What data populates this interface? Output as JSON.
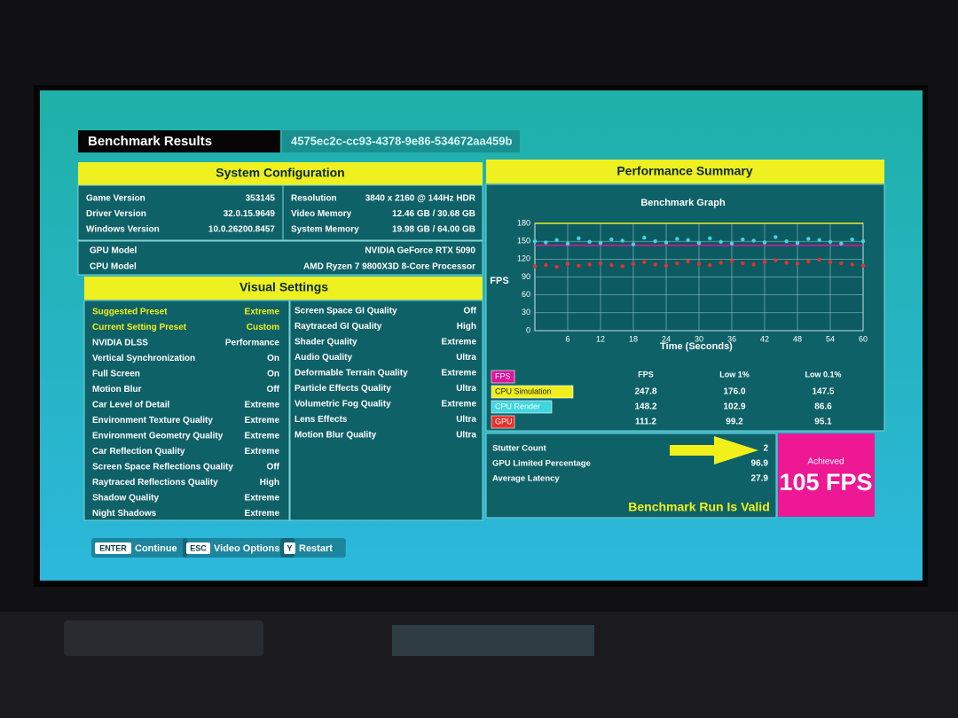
{
  "header": {
    "title": "Benchmark Results",
    "run_id": "4575ec2c-cc93-4378-9e86-534672aa459b"
  },
  "system_configuration": {
    "title": "System Configuration",
    "left": [
      [
        "Game Version",
        "353145"
      ],
      [
        "Driver Version",
        "32.0.15.9649"
      ],
      [
        "Windows Version",
        "10.0.26200.8457"
      ]
    ],
    "right": [
      [
        "Resolution",
        "3840 x 2160 @ 144Hz HDR"
      ],
      [
        "Video Memory",
        "12.46 GB / 30.68 GB"
      ],
      [
        "System Memory",
        "19.98 GB / 64.00 GB"
      ]
    ],
    "hardware": [
      [
        "GPU Model",
        "NVIDIA GeForce RTX 5090"
      ],
      [
        "CPU Model",
        "AMD Ryzen 7 9800X3D 8-Core Processor"
      ]
    ]
  },
  "visual_settings": {
    "title": "Visual Settings",
    "left": [
      [
        "Suggested Preset",
        "Extreme"
      ],
      [
        "Current Setting Preset",
        "Custom"
      ],
      [
        "NVIDIA DLSS",
        "Performance"
      ],
      [
        "Vertical Synchronization",
        "On"
      ],
      [
        "Full Screen",
        "On"
      ],
      [
        "Motion Blur",
        "Off"
      ],
      [
        "Car Level of Detail",
        "Extreme"
      ],
      [
        "Environment Texture Quality",
        "Extreme"
      ],
      [
        "Environment Geometry Quality",
        "Extreme"
      ],
      [
        "Car Reflection Quality",
        "Extreme"
      ],
      [
        "Screen Space Reflections Quality",
        "Off"
      ],
      [
        "Raytraced Reflections Quality",
        "High"
      ],
      [
        "Shadow Quality",
        "Extreme"
      ],
      [
        "Night Shadows",
        "Extreme"
      ]
    ],
    "right": [
      [
        "Screen Space GI Quality",
        "Off"
      ],
      [
        "Raytraced GI Quality",
        "High"
      ],
      [
        "Shader Quality",
        "Extreme"
      ],
      [
        "Audio Quality",
        "Ultra"
      ],
      [
        "Deformable Terrain Quality",
        "Extreme"
      ],
      [
        "Particle Effects Quality",
        "Ultra"
      ],
      [
        "Volumetric Fog Quality",
        "Extreme"
      ],
      [
        "Lens Effects",
        "Ultra"
      ],
      [
        "Motion Blur Quality",
        "Ultra"
      ]
    ]
  },
  "performance_summary": {
    "title": "Performance Summary",
    "columns": [
      "FPS",
      "Low 1%",
      "Low 0.1%"
    ],
    "rows": [
      [
        "247.8",
        "176.0",
        "147.5"
      ],
      [
        "148.2",
        "102.9",
        "86.6"
      ],
      [
        "111.2",
        "99.2",
        "95.1"
      ]
    ],
    "stats": [
      [
        "Stutter Count",
        "2"
      ],
      [
        "GPU Limited Percentage",
        "96.9"
      ],
      [
        "Average Latency",
        "27.9"
      ]
    ],
    "validity": "Benchmark Run Is Valid",
    "achieved_label": "Achieved",
    "achieved_value": "105 FPS"
  },
  "buttons": [
    {
      "key": "ENTER",
      "label": "Continue"
    },
    {
      "key": "ESC",
      "label": "Video Options"
    },
    {
      "key": "Y",
      "label": "Restart"
    }
  ],
  "chart_data": {
    "type": "scatter",
    "title": "Benchmark Graph",
    "x_label": "Time (Seconds)",
    "y_label": "FPS",
    "x": [
      0,
      2,
      4,
      6,
      8,
      10,
      12,
      14,
      16,
      18,
      20,
      22,
      24,
      26,
      28,
      30,
      32,
      34,
      36,
      38,
      40,
      42,
      44,
      46,
      48,
      50,
      52,
      54,
      56,
      58,
      60
    ],
    "series": [
      {
        "name": "FPS",
        "color": "#e0139a",
        "style": "line",
        "values": [
          143,
          143,
          143,
          143,
          143,
          143,
          143,
          143,
          143,
          143,
          143,
          143,
          143,
          143,
          143,
          143,
          143,
          143,
          143,
          143,
          143,
          143,
          143,
          143,
          143,
          143,
          143,
          143,
          143,
          143,
          143
        ]
      },
      {
        "name": "CPU Simulation",
        "color": "#f0ef1c",
        "style": "line",
        "values": [
          180,
          180,
          180,
          180,
          180,
          180,
          180,
          180,
          180,
          180,
          180,
          180,
          180,
          180,
          180,
          180,
          180,
          180,
          180,
          180,
          180,
          180,
          180,
          180,
          180,
          180,
          180,
          180,
          180,
          180,
          180
        ]
      },
      {
        "name": "CPU Render",
        "color": "#3fd6e0",
        "style": "dots",
        "values": [
          150,
          148,
          152,
          146,
          155,
          149,
          147,
          153,
          151,
          145,
          156,
          150,
          148,
          154,
          152,
          147,
          155,
          149,
          146,
          153,
          151,
          148,
          157,
          150,
          147,
          154,
          152,
          149,
          146,
          153,
          150
        ]
      },
      {
        "name": "GPU",
        "color": "#e8302a",
        "style": "dots",
        "values": [
          108,
          110,
          107,
          112,
          109,
          111,
          113,
          110,
          108,
          112,
          115,
          111,
          109,
          113,
          116,
          112,
          110,
          114,
          117,
          113,
          111,
          115,
          118,
          114,
          112,
          116,
          119,
          115,
          113,
          111,
          109
        ]
      }
    ],
    "xlim": [
      0,
      60
    ],
    "ylim": [
      0,
      180
    ],
    "xticks": [
      6,
      12,
      18,
      24,
      30,
      36,
      42,
      48,
      54,
      60
    ],
    "yticks": [
      0,
      30,
      60,
      90,
      120,
      150,
      180
    ],
    "grid": true
  }
}
